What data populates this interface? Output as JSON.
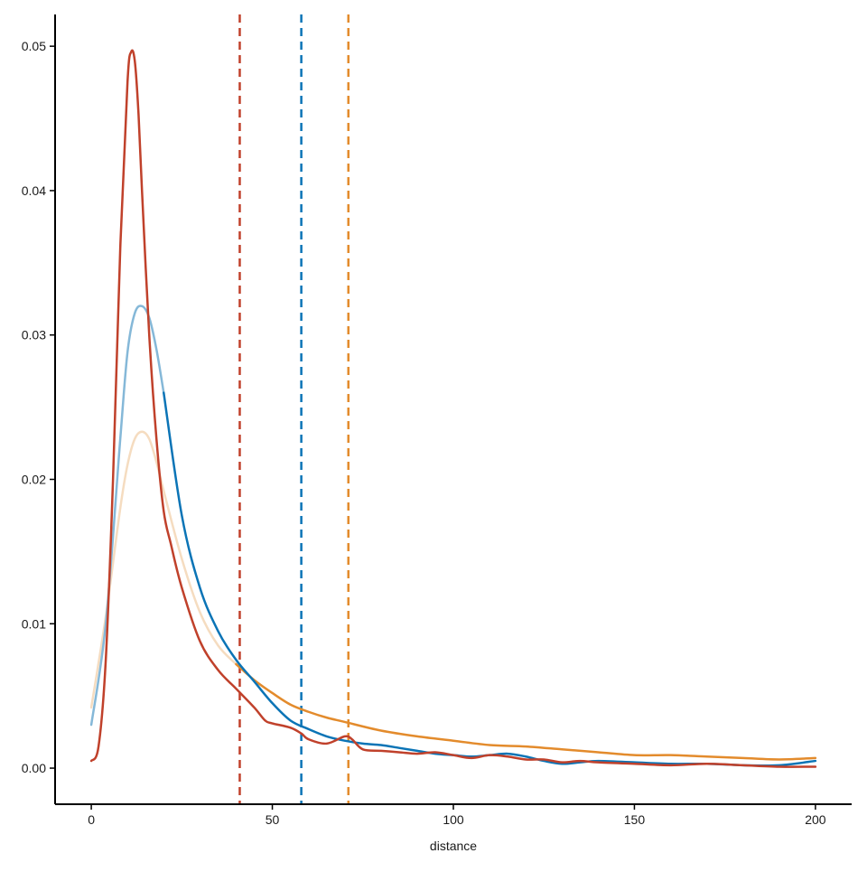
{
  "chart_data": {
    "type": "line",
    "title": "",
    "xlabel": "distance",
    "ylabel": "",
    "xlim": [
      -10,
      210
    ],
    "ylim": [
      -0.0025,
      0.0522
    ],
    "x_ticks": [
      0,
      50,
      100,
      150,
      200
    ],
    "x_tick_labels": [
      "0",
      "50",
      "100",
      "150",
      "200"
    ],
    "y_ticks": [
      0,
      0.01,
      0.02,
      0.03,
      0.04,
      0.05
    ],
    "y_tick_labels": [
      "0.00",
      "0.01",
      "0.02",
      "0.03",
      "0.04",
      "0.05"
    ],
    "grid": false,
    "legend": "none",
    "series": [
      {
        "color": "#f5dcc0",
        "x": [
          0,
          4,
          8,
          10,
          12,
          14,
          16,
          18,
          20,
          25,
          30,
          35,
          40
        ],
        "y": [
          0.0042,
          0.0105,
          0.018,
          0.021,
          0.0228,
          0.0233,
          0.0228,
          0.0212,
          0.0192,
          0.0145,
          0.0108,
          0.0085,
          0.0072
        ]
      },
      {
        "color": "#e38b2c",
        "x": [
          40,
          45,
          50,
          55,
          60,
          65,
          70,
          80,
          90,
          100,
          110,
          120,
          130,
          140,
          150,
          160,
          170,
          180,
          190,
          200
        ],
        "y": [
          0.0072,
          0.0061,
          0.0052,
          0.0044,
          0.0039,
          0.0035,
          0.0032,
          0.0026,
          0.0022,
          0.0019,
          0.0016,
          0.0015,
          0.0013,
          0.0011,
          0.0009,
          0.0009,
          0.0008,
          0.0007,
          0.0006,
          0.0007
        ]
      },
      {
        "color": "#85b8d8",
        "x": [
          0,
          4,
          8,
          10,
          12,
          14,
          16,
          18,
          20
        ],
        "y": [
          0.003,
          0.01,
          0.0228,
          0.0288,
          0.0315,
          0.032,
          0.0312,
          0.029,
          0.026
        ]
      },
      {
        "color": "#0b74b6",
        "x": [
          20,
          25,
          30,
          35,
          40,
          45,
          50,
          55,
          60,
          65,
          70,
          75,
          80,
          85,
          90,
          95,
          100,
          105,
          110,
          115,
          120,
          125,
          130,
          135,
          140,
          150,
          160,
          170,
          180,
          190,
          200
        ],
        "y": [
          0.026,
          0.0175,
          0.0125,
          0.0095,
          0.0075,
          0.006,
          0.0045,
          0.0033,
          0.0027,
          0.0022,
          0.0019,
          0.0017,
          0.0016,
          0.0014,
          0.0012,
          0.001,
          0.0009,
          0.0008,
          0.0009,
          0.001,
          0.0008,
          0.0005,
          0.0003,
          0.0004,
          0.0005,
          0.0004,
          0.0003,
          0.0003,
          0.0002,
          0.0002,
          0.0005
        ]
      },
      {
        "color": "#c0412b",
        "x": [
          0,
          2,
          4,
          6,
          8,
          10,
          11,
          12,
          13,
          14,
          16,
          18,
          20,
          22,
          25,
          30,
          35,
          40,
          45,
          48,
          50,
          55,
          58,
          60,
          65,
          70,
          72,
          75,
          80,
          85,
          90,
          95,
          100,
          105,
          110,
          115,
          120,
          125,
          130,
          135,
          140,
          150,
          160,
          170,
          180,
          190,
          200
        ],
        "y": [
          0.0005,
          0.0015,
          0.0075,
          0.02,
          0.036,
          0.0475,
          0.0496,
          0.049,
          0.0455,
          0.04,
          0.03,
          0.0228,
          0.0178,
          0.0155,
          0.0125,
          0.0088,
          0.0068,
          0.0055,
          0.0042,
          0.0033,
          0.0031,
          0.0028,
          0.0024,
          0.002,
          0.0017,
          0.0022,
          0.002,
          0.0013,
          0.0012,
          0.0011,
          0.001,
          0.0011,
          0.0009,
          0.0007,
          0.0009,
          0.0008,
          0.0006,
          0.0006,
          0.0004,
          0.0005,
          0.0004,
          0.0003,
          0.0002,
          0.0003,
          0.0002,
          0.0001,
          0.0001
        ]
      }
    ],
    "reference_lines": [
      {
        "x": 41,
        "color": "#c0412b",
        "style": "dashed"
      },
      {
        "x": 58,
        "color": "#0b74b6",
        "style": "dashed"
      },
      {
        "x": 71,
        "color": "#e38b2c",
        "style": "dashed"
      }
    ]
  }
}
